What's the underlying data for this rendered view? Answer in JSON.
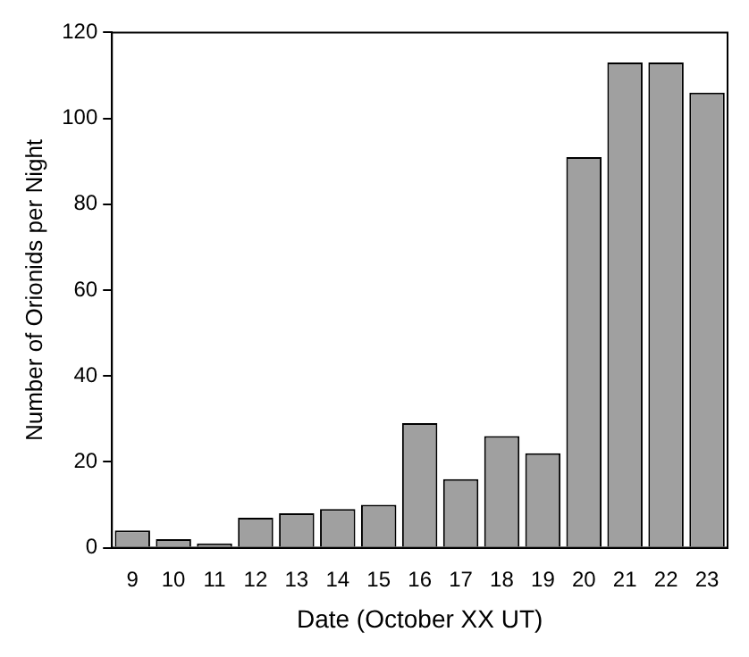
{
  "chart_data": {
    "type": "bar",
    "xlabel": "Date (October XX UT)",
    "ylabel": "Number of Orionids per Night",
    "categories": [
      "9",
      "10",
      "11",
      "12",
      "13",
      "14",
      "15",
      "16",
      "17",
      "18",
      "19",
      "20",
      "21",
      "22",
      "23"
    ],
    "values": [
      4,
      2,
      1,
      7,
      8,
      9,
      10,
      29,
      16,
      26,
      22,
      91,
      113,
      113,
      106
    ],
    "color": "#a0a0a0",
    "ylim": [
      0,
      120
    ],
    "yticks": [
      0,
      20,
      40,
      60,
      80,
      100,
      120
    ],
    "grid": false,
    "legend": false
  }
}
